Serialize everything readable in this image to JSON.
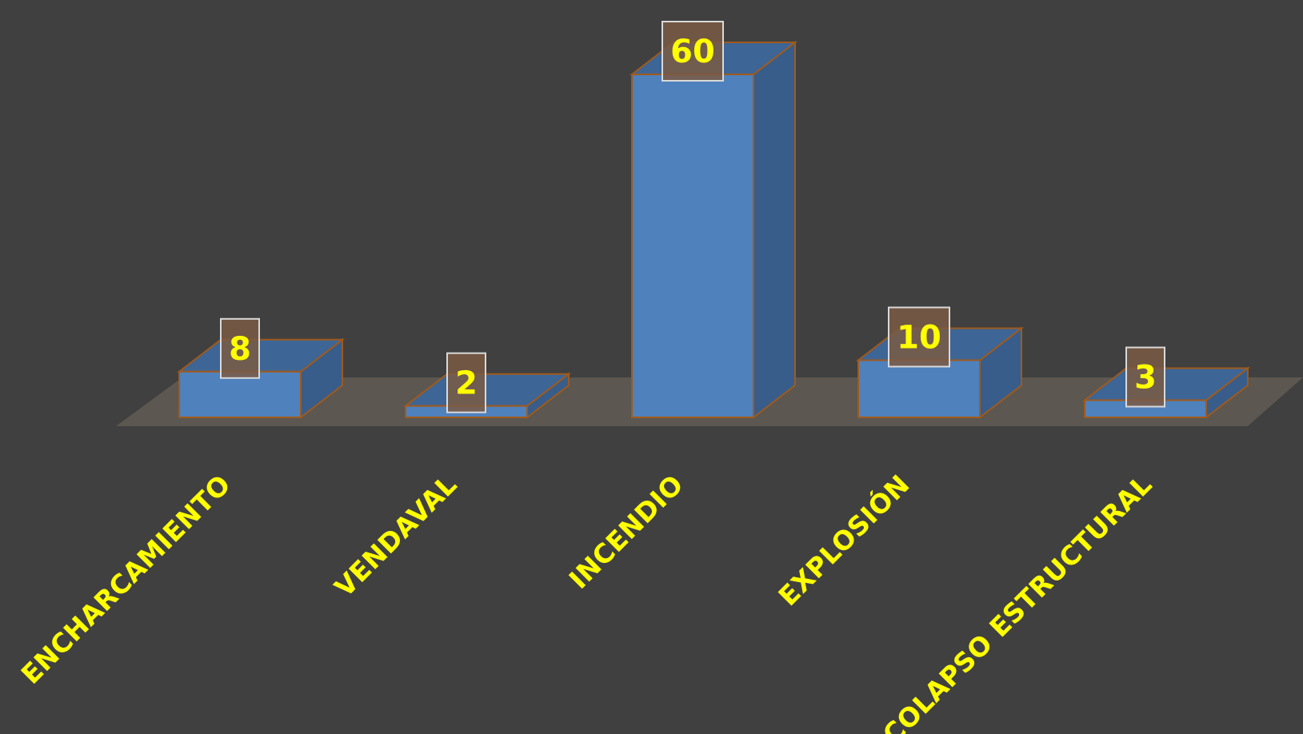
{
  "chart_data": {
    "type": "bar",
    "style": "3d",
    "categories": [
      "ENCHARCAMIENTO",
      "VENDAVAL",
      "INCENDIO",
      "EXPLOSIÓN",
      "COLAPSO ESTRUCTURAL"
    ],
    "values": [
      8,
      2,
      60,
      10,
      3
    ],
    "data_labels": [
      "8",
      "2",
      "60",
      "10",
      "3"
    ],
    "ylim": [
      0,
      60
    ],
    "grid": false,
    "legend": "none"
  },
  "colors": {
    "background": "#404040",
    "floor": "#5c5750",
    "bar_front": "#4f81bd",
    "bar_top": "#3d6596",
    "bar_side": "#385d8a",
    "bar_edge": "#a05a1c",
    "label_box_fill": "#7a5a44",
    "label_box_stroke": "#d9d9d9",
    "label_text": "#ffff00",
    "category_text": "#ffff00"
  }
}
